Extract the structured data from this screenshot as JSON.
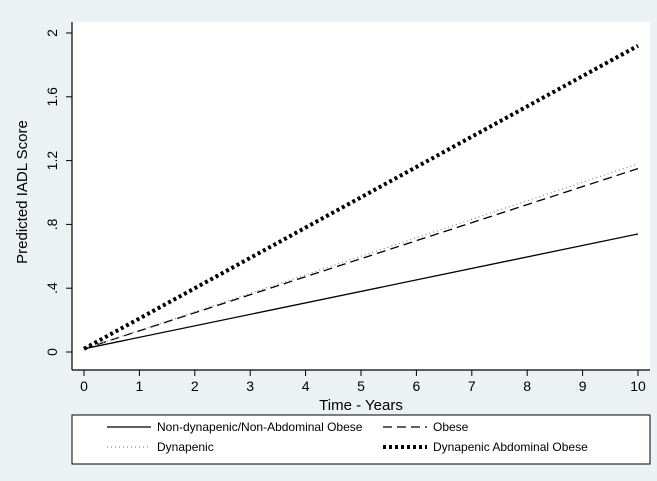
{
  "chart_data": {
    "type": "line",
    "xlabel": "Time - Years",
    "ylabel": "Predicted IADL Score",
    "xlim": [
      0,
      10
    ],
    "ylim": [
      0,
      2
    ],
    "x_ticks": [
      "0",
      "1",
      "2",
      "3",
      "4",
      "5",
      "6",
      "7",
      "8",
      "9",
      "10"
    ],
    "y_ticks": [
      "0",
      ".4",
      ".8",
      "1.2",
      "1.6",
      "2"
    ],
    "grid": false,
    "legend_position": "bottom",
    "x": [
      0,
      10
    ],
    "series": [
      {
        "name": "Non-dynapenic/Non-Abdominal Obese",
        "style": "solid",
        "color": "#000000",
        "values": [
          0.02,
          0.74
        ]
      },
      {
        "name": "Obese",
        "style": "dashed",
        "color": "#000000",
        "values": [
          0.02,
          1.15
        ]
      },
      {
        "name": "Dynapenic",
        "style": "dotted",
        "color": "#8a8a5c",
        "values": [
          0.02,
          1.18
        ]
      },
      {
        "name": "Dynapenic Abdominal Obese",
        "style": "thick-dotted",
        "color": "#000000",
        "values": [
          0.02,
          1.92
        ]
      }
    ]
  }
}
